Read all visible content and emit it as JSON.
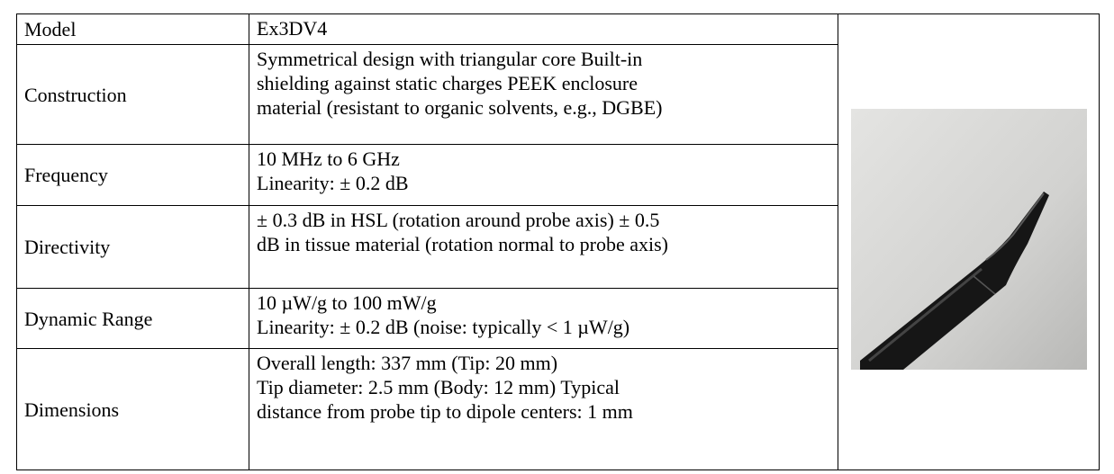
{
  "table": {
    "rows": [
      {
        "label": "Model",
        "lines": [
          "Ex3DV4"
        ]
      },
      {
        "label": "Construction",
        "lines": [
          "Symmetrical design with triangular core Built-in",
          "shielding against static charges PEEK enclosure",
          "material (resistant to organic solvents, e.g., DGBE)"
        ]
      },
      {
        "label": "Frequency",
        "lines": [
          "10 MHz to 6 GHz",
          "Linearity: ± 0.2 dB"
        ]
      },
      {
        "label": "Directivity",
        "lines": [
          "± 0.3 dB in HSL (rotation around probe axis) ± 0.5",
          "dB in tissue material (rotation normal to probe axis)"
        ]
      },
      {
        "label": "Dynamic Range",
        "lines": [
          "10 µW/g to 100 mW/g",
          "Linearity: ± 0.2 dB (noise: typically < 1 µW/g)"
        ]
      },
      {
        "label": "Dimensions",
        "lines": [
          "Overall length: 337 mm (Tip: 20 mm)",
          "Tip diameter: 2.5 mm (Body: 12 mm) Typical",
          "distance from probe tip to dipole centers: 1 mm"
        ]
      }
    ]
  }
}
